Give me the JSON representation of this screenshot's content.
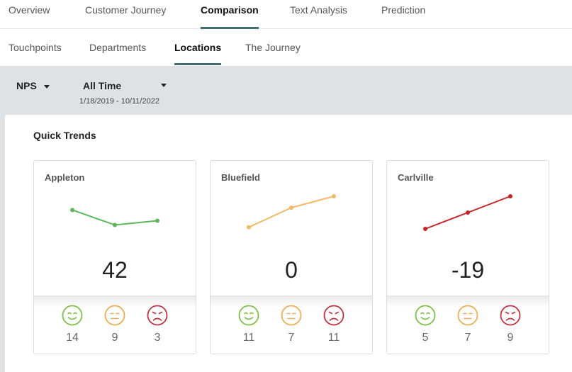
{
  "tabs": [
    {
      "label": "Overview",
      "active": false
    },
    {
      "label": "Customer Journey",
      "active": false
    },
    {
      "label": "Comparison",
      "active": true
    },
    {
      "label": "Text Analysis",
      "active": false
    },
    {
      "label": "Prediction",
      "active": false
    }
  ],
  "subtabs": [
    {
      "label": "Touchpoints",
      "active": false
    },
    {
      "label": "Departments",
      "active": false
    },
    {
      "label": "Locations",
      "active": true
    },
    {
      "label": "The Journey",
      "active": false
    }
  ],
  "filters": {
    "metric": "NPS",
    "period": "All Time",
    "date_range": "1/18/2019 - 10/11/2022"
  },
  "quick_trends": {
    "title": "Quick Trends",
    "cards": [
      {
        "name": "Appleton",
        "score": "42",
        "trend": [
          0.58,
          0.12,
          0.25
        ],
        "color": "#5cb85c",
        "counts": {
          "promoters": "14",
          "passives": "9",
          "detractors": "3"
        }
      },
      {
        "name": "Bluefield",
        "score": "0",
        "trend": [
          0.05,
          0.65,
          1.0
        ],
        "color": "#f5b963",
        "counts": {
          "promoters": "11",
          "passives": "7",
          "detractors": "11"
        }
      },
      {
        "name": "Carlville",
        "score": "-19",
        "trend": [
          0.0,
          0.5,
          1.0
        ],
        "color": "#cc2222",
        "counts": {
          "promoters": "5",
          "passives": "7",
          "detractors": "9"
        }
      }
    ]
  },
  "face_colors": {
    "happy": "#7cc243",
    "neutral": "#f0ad4e",
    "sad": "#c9303e"
  },
  "icons": {
    "promoter": "happy-face-icon",
    "passive": "neutral-face-icon",
    "detractor": "sad-face-icon"
  }
}
